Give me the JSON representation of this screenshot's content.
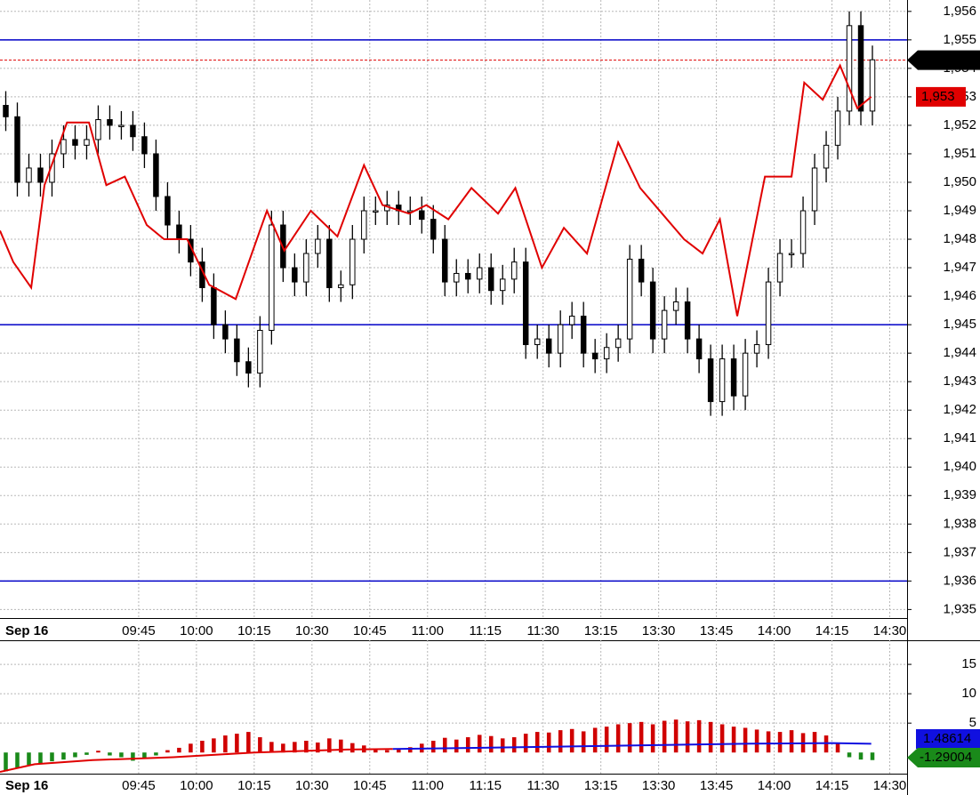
{
  "chart_data": [
    {
      "type": "candlestick",
      "date_label": "Sep 16",
      "grid": true,
      "xlim": [
        0,
        78.5
      ],
      "ylim": [
        1934.7,
        1956.4
      ],
      "xticks": [
        {
          "value": 12,
          "label": "09:45"
        },
        {
          "value": 17,
          "label": "10:00"
        },
        {
          "value": 22,
          "label": "10:15"
        },
        {
          "value": 27,
          "label": "10:30"
        },
        {
          "value": 32,
          "label": "10:45"
        },
        {
          "value": 37,
          "label": "11:00"
        },
        {
          "value": 42,
          "label": "11:15"
        },
        {
          "value": 47,
          "label": "11:30"
        },
        {
          "value": 52,
          "label": "13:15"
        },
        {
          "value": 57,
          "label": "13:30"
        },
        {
          "value": 62,
          "label": "13:45"
        },
        {
          "value": 67,
          "label": "14:00"
        },
        {
          "value": 72,
          "label": "14:15"
        },
        {
          "value": 77,
          "label": "14:30"
        }
      ],
      "yticks": [
        {
          "value": 1935,
          "label": "1,935"
        },
        {
          "value": 1936,
          "label": "1,936"
        },
        {
          "value": 1937,
          "label": "1,937"
        },
        {
          "value": 1938,
          "label": "1,938"
        },
        {
          "value": 1939,
          "label": "1,939"
        },
        {
          "value": 1940,
          "label": "1,940"
        },
        {
          "value": 1941,
          "label": "1,941"
        },
        {
          "value": 1942,
          "label": "1,942"
        },
        {
          "value": 1943,
          "label": "1,943"
        },
        {
          "value": 1944,
          "label": "1,944"
        },
        {
          "value": 1945,
          "label": "1,945"
        },
        {
          "value": 1946,
          "label": "1,946"
        },
        {
          "value": 1947,
          "label": "1,947"
        },
        {
          "value": 1948,
          "label": "1,948"
        },
        {
          "value": 1949,
          "label": "1,949"
        },
        {
          "value": 1950,
          "label": "1,950"
        },
        {
          "value": 1951,
          "label": "1,951"
        },
        {
          "value": 1952,
          "label": "1,952"
        },
        {
          "value": 1953,
          "label": "1,953"
        },
        {
          "value": 1954,
          "label": "1,954"
        },
        {
          "value": 1955,
          "label": "1,955"
        },
        {
          "value": 1956,
          "label": "1,956"
        }
      ],
      "up_color": "#ffffff",
      "down_color": "#000000",
      "open": [
        1952.7,
        1952.3,
        1950,
        1950.5,
        1950,
        1951,
        1951.5,
        1951.3,
        1951.5,
        1952.2,
        1952,
        1952,
        1951.6,
        1951,
        1949.5,
        1948.5,
        1948,
        1947.2,
        1946.3,
        1945,
        1944.5,
        1943.7,
        1943.3,
        1944.8,
        1948.5,
        1947,
        1946.5,
        1947.5,
        1948,
        1946.3,
        1946.4,
        1948,
        1949,
        1949,
        1949.2,
        1949,
        1949,
        1948.7,
        1948,
        1946.5,
        1946.8,
        1946.6,
        1947,
        1946.2,
        1946.6,
        1947.2,
        1944.3,
        1944.5,
        1944,
        1945,
        1945.3,
        1944,
        1943.8,
        1944.2,
        1944.5,
        1947.3,
        1946.5,
        1944.5,
        1945.5,
        1945.8,
        1944.5,
        1943.8,
        1942.3,
        1943.8,
        1942.5,
        1944,
        1944.3,
        1946.5,
        1947.5,
        1947.5,
        1949,
        1950.5,
        1951.3,
        1952.5,
        1955.5,
        1952.5
      ],
      "high": [
        1953.2,
        1952.8,
        1951,
        1951,
        1951.5,
        1952,
        1952,
        1952,
        1952.7,
        1952.7,
        1952.5,
        1952.5,
        1952.1,
        1951.5,
        1950,
        1949,
        1948.5,
        1947.7,
        1946.8,
        1945.5,
        1945,
        1944.2,
        1945.3,
        1949,
        1949,
        1947.5,
        1948,
        1948.5,
        1948.5,
        1946.9,
        1948.5,
        1949.5,
        1949.5,
        1949.7,
        1949.7,
        1949.5,
        1949.5,
        1949.2,
        1948.5,
        1947.3,
        1947.3,
        1947.5,
        1947.5,
        1947.1,
        1947.7,
        1947.7,
        1945,
        1945,
        1945.5,
        1945.8,
        1945.8,
        1944.5,
        1944.7,
        1945,
        1947.8,
        1947.8,
        1947,
        1946,
        1946.3,
        1946.3,
        1945,
        1944.3,
        1944.3,
        1944.3,
        1944.5,
        1944.8,
        1947,
        1948,
        1948,
        1949.5,
        1951,
        1951.8,
        1953,
        1956,
        1956,
        1954.8
      ],
      "low": [
        1951.8,
        1949.5,
        1949.5,
        1949.5,
        1949.5,
        1950.5,
        1950.8,
        1950.8,
        1951,
        1951.5,
        1951.5,
        1951.1,
        1950.5,
        1949,
        1948,
        1947.5,
        1946.7,
        1945.8,
        1944.5,
        1944,
        1943.2,
        1942.8,
        1942.8,
        1944.3,
        1946.5,
        1946,
        1946,
        1947,
        1945.8,
        1945.8,
        1945.9,
        1947.5,
        1948.5,
        1948.5,
        1948.5,
        1948.5,
        1948.2,
        1947.5,
        1946,
        1946,
        1946.1,
        1946.1,
        1945.7,
        1945.7,
        1946.1,
        1943.8,
        1943.8,
        1943.5,
        1943.5,
        1944.5,
        1943.5,
        1943.3,
        1943.3,
        1943.7,
        1944,
        1946,
        1944,
        1944,
        1945,
        1944,
        1943.3,
        1941.8,
        1941.8,
        1942,
        1942,
        1943.5,
        1943.8,
        1946,
        1947,
        1947,
        1948.5,
        1950,
        1950.8,
        1952,
        1952,
        1952
      ],
      "close": [
        1952.3,
        1950,
        1950.5,
        1950,
        1951,
        1951.5,
        1951.3,
        1951.5,
        1952.2,
        1952,
        1952,
        1951.6,
        1951,
        1949.5,
        1948.5,
        1948,
        1947.2,
        1946.3,
        1945,
        1944.5,
        1943.7,
        1943.3,
        1944.8,
        1948.5,
        1947,
        1946.5,
        1947.5,
        1948,
        1946.3,
        1946.4,
        1948,
        1949,
        1949,
        1949.2,
        1949,
        1949,
        1948.7,
        1948,
        1946.5,
        1946.8,
        1946.6,
        1947,
        1946.2,
        1946.6,
        1947.2,
        1944.3,
        1944.5,
        1944,
        1945,
        1945.3,
        1944,
        1943.8,
        1944.2,
        1944.5,
        1947.3,
        1946.5,
        1944.5,
        1945.5,
        1945.8,
        1944.5,
        1943.8,
        1942.3,
        1943.8,
        1942.5,
        1944,
        1944.3,
        1946.5,
        1947.5,
        1947.5,
        1949,
        1950.5,
        1951.3,
        1952.5,
        1955.5,
        1952.5,
        1954.3
      ],
      "compare": {
        "color": "#e00000",
        "last_label": "1,953",
        "x": [
          0,
          1.15,
          2.7,
          3.85,
          5.8,
          7.7,
          9.2,
          10.8,
          12.7,
          14.2,
          16.2,
          18.1,
          20.4,
          23.1,
          24.6,
          26.9,
          29.2,
          31.5,
          33.1,
          35.4,
          36.9,
          38.8,
          40.8,
          43.1,
          44.6,
          46.9,
          48.8,
          50.8,
          53.5,
          55.4,
          57.3,
          59.2,
          60.8,
          62.3,
          63.8,
          66.2,
          68.5,
          69.6,
          71.2,
          72.7,
          74.2,
          75.4
        ],
        "values": [
          1948.3,
          1947.2,
          1946.3,
          1949.9,
          1952.1,
          1952.1,
          1949.9,
          1950.2,
          1948.5,
          1948,
          1948,
          1946.4,
          1945.9,
          1949,
          1947.6,
          1949,
          1948.1,
          1950.6,
          1949.2,
          1948.9,
          1949.2,
          1948.7,
          1949.8,
          1948.9,
          1949.8,
          1947,
          1948.4,
          1947.5,
          1951.4,
          1949.8,
          1948.9,
          1948,
          1947.5,
          1948.7,
          1945.3,
          1950.2,
          1950.2,
          1953.5,
          1952.9,
          1954.1,
          1952.6,
          1953
        ]
      },
      "hlines": [
        {
          "value": 1955,
          "color": "#0000c8"
        },
        {
          "value": 1945,
          "color": "#0000c8"
        },
        {
          "value": 1936,
          "color": "#0000c8"
        }
      ],
      "price_tag": {
        "value": 1954.29,
        "label": "1,954.29",
        "color": "#000000"
      }
    },
    {
      "type": "oscillator",
      "grid": true,
      "xlim": [
        0,
        78.5
      ],
      "ylim": [
        -3.6,
        19.1
      ],
      "yticks": [
        5,
        10,
        15
      ],
      "pos_color": "#d00000",
      "neg_color": "#1a8a1a",
      "neg_tag_color": "#1a8a1a",
      "values": [
        -3.2,
        -2.6,
        -2.1,
        -1.8,
        -1.5,
        -1.2,
        -0.8,
        -0.4,
        0.3,
        -0.5,
        -0.8,
        -1.4,
        -0.9,
        -0.5,
        0.4,
        0.8,
        1.5,
        2,
        2.4,
        2.9,
        3.2,
        3.5,
        2.6,
        1.8,
        1.5,
        1.8,
        2,
        1.7,
        2.4,
        2.2,
        1.6,
        1.2,
        0.6,
        0.4,
        0.7,
        0.9,
        1.5,
        2,
        2.5,
        2.2,
        2.6,
        3,
        2.8,
        2.4,
        2.6,
        3.2,
        3.5,
        3.4,
        3.8,
        4,
        3.6,
        4.2,
        4.4,
        4.8,
        5,
        5.2,
        4.8,
        5.4,
        5.6,
        5.3,
        5.5,
        5.2,
        4.8,
        4.4,
        4.2,
        3.9,
        3.6,
        3.5,
        3.8,
        3.3,
        3.5,
        2.9,
        1.5,
        -0.8,
        -1.2,
        -1.29004
      ],
      "lines": [
        {
          "color": "#e00000",
          "x": [
            0,
            3,
            8,
            15,
            22,
            30,
            34
          ],
          "values": [
            -3.3,
            -2,
            -1.3,
            -0.8,
            0,
            0.5,
            0.6
          ]
        },
        {
          "color": "#1010e0",
          "x": [
            34,
            45,
            55,
            65,
            72,
            75.4
          ],
          "values": [
            0.6,
            0.9,
            1.2,
            1.5,
            1.6,
            1.48614
          ]
        }
      ]
    }
  ]
}
